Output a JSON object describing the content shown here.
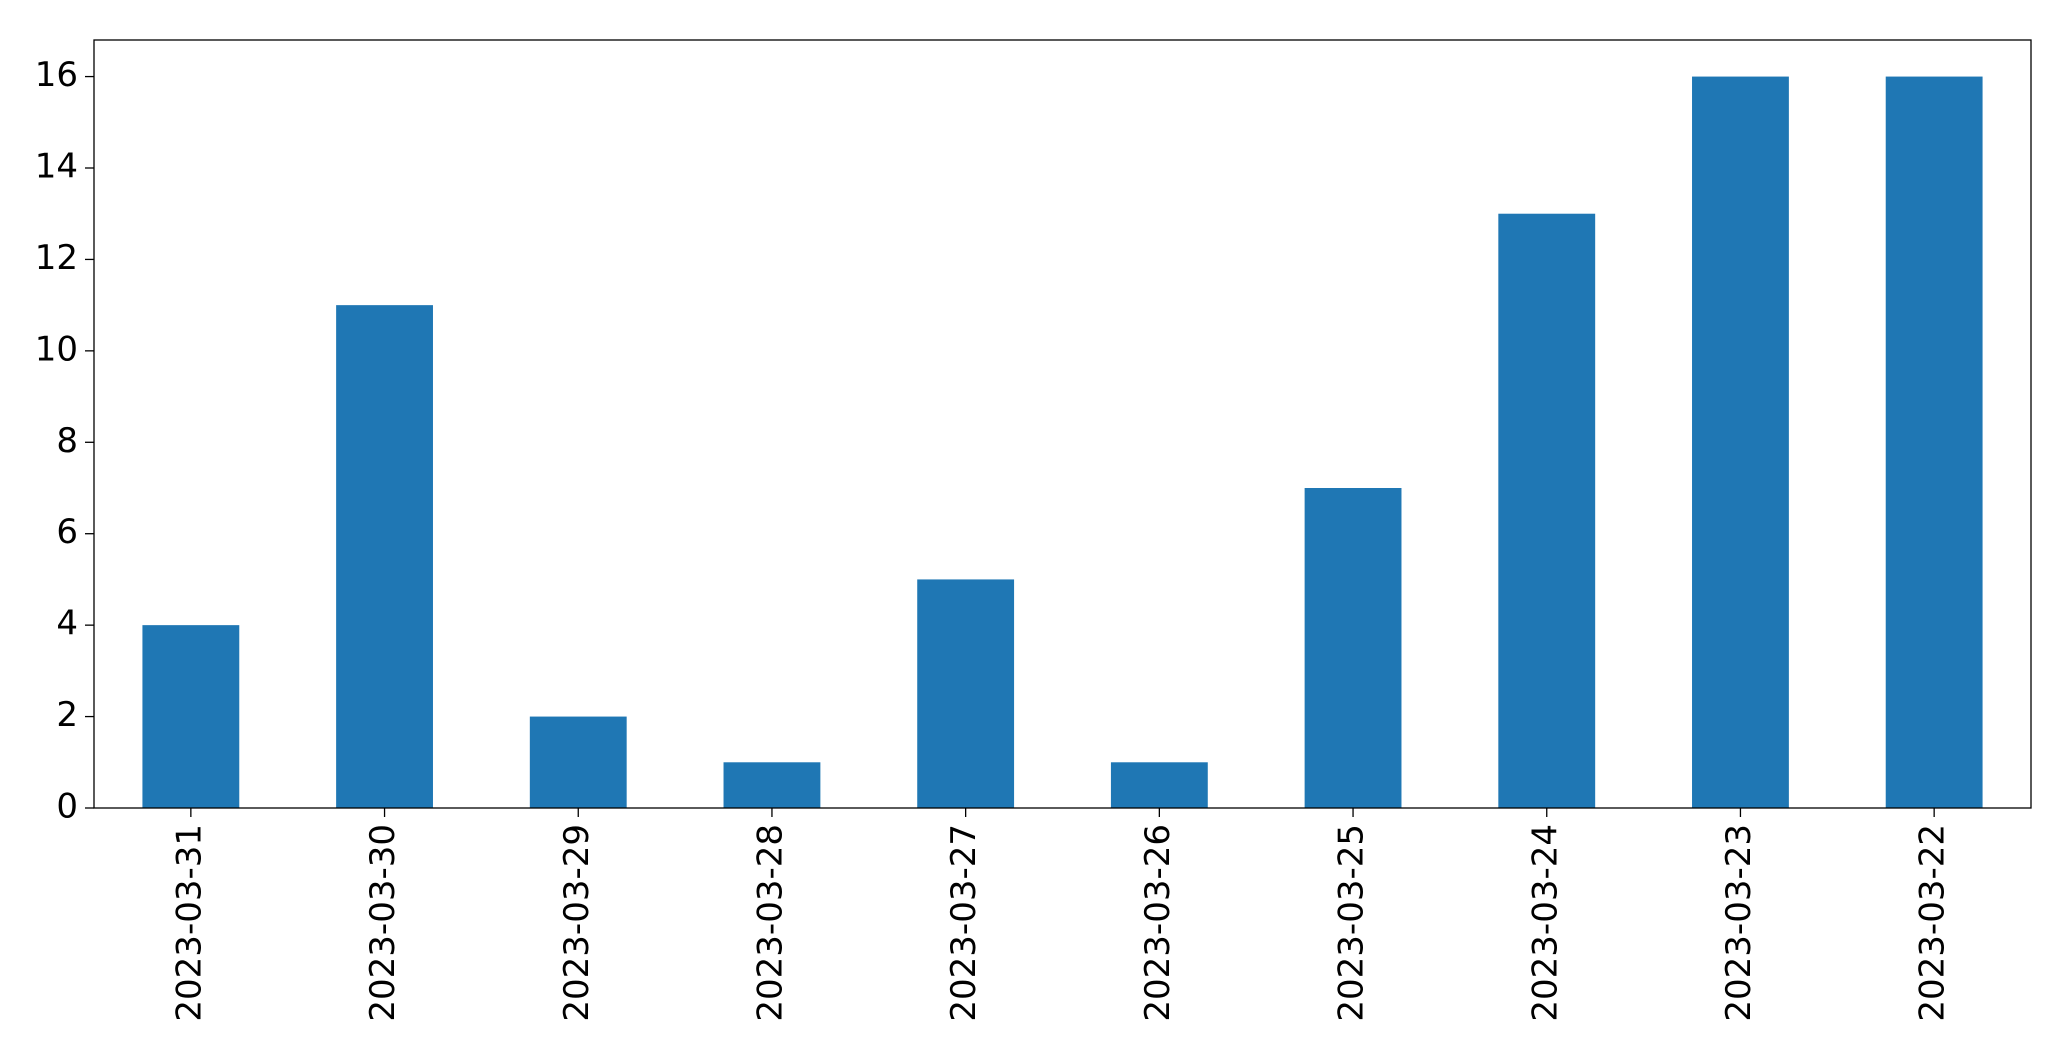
{
  "chart_data": {
    "type": "bar",
    "categories": [
      "2023-03-31",
      "2023-03-30",
      "2023-03-29",
      "2023-03-28",
      "2023-03-27",
      "2023-03-26",
      "2023-03-25",
      "2023-03-24",
      "2023-03-23",
      "2023-03-22"
    ],
    "values": [
      4,
      11,
      2,
      1,
      5,
      1,
      7,
      13,
      16,
      16
    ],
    "color": "#1f77b4",
    "ylim": [
      0,
      16.8
    ],
    "yticks": [
      0,
      2,
      4,
      6,
      8,
      10,
      12,
      14,
      16
    ],
    "grid": false
  }
}
